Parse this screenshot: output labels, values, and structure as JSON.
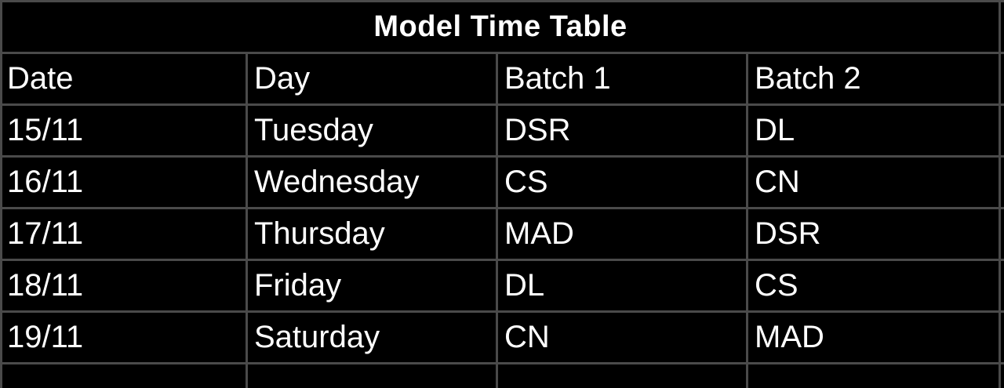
{
  "table": {
    "title": "Model Time Table",
    "headers": [
      "Date",
      "Day",
      "Batch 1",
      "Batch 2"
    ],
    "rows": [
      [
        "15/11",
        "Tuesday",
        "DSR",
        "DL"
      ],
      [
        "16/11",
        "Wednesday",
        "CS",
        "CN"
      ],
      [
        "17/11",
        "Thursday",
        "MAD",
        "DSR"
      ],
      [
        "18/11",
        "Friday",
        "DL",
        "CS"
      ],
      [
        "19/11",
        "Saturday",
        "CN",
        "MAD"
      ]
    ]
  },
  "colors": {
    "background": "#000000",
    "text": "#ffffff",
    "gridline": "#4a4a4a"
  }
}
